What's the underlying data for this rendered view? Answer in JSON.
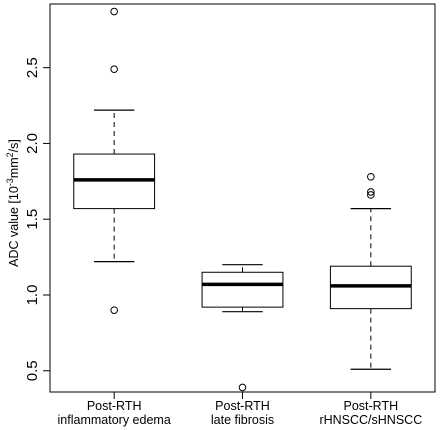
{
  "chart_data": {
    "type": "box",
    "ylabel": {
      "prefix": "ADC value [10",
      "sup1": "-3",
      "mid": "mm",
      "sup2": "2",
      "suffix": "/s]"
    },
    "ylim": [
      0.36,
      2.92
    ],
    "yticks": [
      0.5,
      1.0,
      1.5,
      2.0,
      2.5
    ],
    "ytick_labels": [
      "0.5",
      "1.0",
      "1.5",
      "2.0",
      "2.5"
    ],
    "grid": false,
    "legend": "none",
    "categories": [
      {
        "line1": "Post-RTH",
        "line2": "inflammatory edema"
      },
      {
        "line1": "Post-RTH",
        "line2": "late fibrosis"
      },
      {
        "line1": "Post-RTH",
        "line2": "rHNSCC/sHNSCC"
      }
    ],
    "boxes": [
      {
        "whisker_low": 1.22,
        "q1": 1.57,
        "median": 1.76,
        "q3": 1.93,
        "whisker_high": 2.22,
        "outliers": [
          0.9,
          2.49,
          2.87
        ]
      },
      {
        "whisker_low": 0.89,
        "q1": 0.92,
        "median": 1.07,
        "q3": 1.15,
        "whisker_high": 1.2,
        "outliers": [
          0.39
        ]
      },
      {
        "whisker_low": 0.51,
        "q1": 0.91,
        "median": 1.06,
        "q3": 1.19,
        "whisker_high": 1.57,
        "outliers": [
          1.66,
          1.68,
          1.78
        ]
      }
    ]
  }
}
